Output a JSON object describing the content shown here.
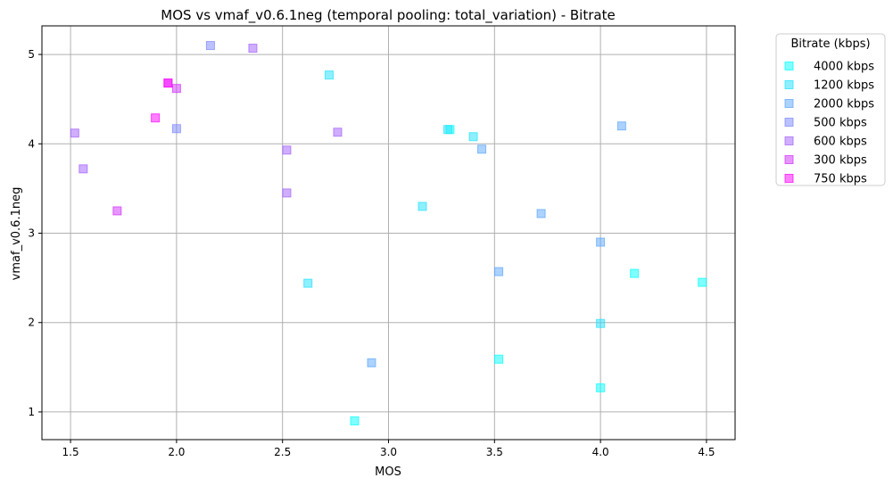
{
  "chart_data": {
    "type": "scatter",
    "title": "MOS vs vmaf_v0.6.1neg (temporal pooling: total_variation) - Bitrate",
    "xlabel": "MOS",
    "ylabel": "vmaf_v0.6.1neg",
    "xlim": [
      1.365,
      4.635
    ],
    "ylim": [
      0.69,
      5.32
    ],
    "xticks": [
      1.5,
      2.0,
      2.5,
      3.0,
      3.5,
      4.0,
      4.5
    ],
    "xtick_labels": [
      "1.5",
      "2.0",
      "2.5",
      "3.0",
      "3.5",
      "4.0",
      "4.5"
    ],
    "yticks": [
      1,
      2,
      3,
      4,
      5
    ],
    "ytick_labels": [
      "1",
      "2",
      "3",
      "4",
      "5"
    ],
    "grid": true,
    "legend_position": "outside-top-right",
    "legend_title": "Bitrate (kbps)",
    "series": [
      {
        "name": "4000 kbps",
        "color": "#00ffff",
        "points": [
          [
            3.29,
            4.16
          ],
          [
            4.16,
            2.55
          ],
          [
            4.48,
            2.45
          ],
          [
            3.52,
            1.59
          ],
          [
            4.0,
            1.27
          ],
          [
            2.84,
            0.9
          ]
        ]
      },
      {
        "name": "1200 kbps",
        "color": "#1ee1ff",
        "points": [
          [
            2.72,
            4.77
          ],
          [
            3.28,
            4.16
          ],
          [
            3.4,
            4.08
          ],
          [
            3.16,
            3.3
          ],
          [
            2.62,
            2.44
          ],
          [
            4.0,
            1.99
          ]
        ]
      },
      {
        "name": "2000 kbps",
        "color": "#5aa5ff",
        "points": [
          [
            4.1,
            4.2
          ],
          [
            3.44,
            3.94
          ],
          [
            3.72,
            3.22
          ],
          [
            4.0,
            2.9
          ],
          [
            3.52,
            2.57
          ],
          [
            2.92,
            1.55
          ]
        ]
      },
      {
        "name": "500 kbps",
        "color": "#7a85ff",
        "points": [
          [
            2.16,
            5.1
          ],
          [
            2.0,
            4.17
          ]
        ]
      },
      {
        "name": "600 kbps",
        "color": "#a15eff",
        "points": [
          [
            2.36,
            5.07
          ],
          [
            1.52,
            4.12
          ],
          [
            2.76,
            4.13
          ],
          [
            2.52,
            3.93
          ],
          [
            1.56,
            3.72
          ],
          [
            2.52,
            3.45
          ]
        ]
      },
      {
        "name": "300 kbps",
        "color": "#d22dff",
        "points": [
          [
            2.0,
            4.62
          ],
          [
            1.96,
            4.68
          ],
          [
            1.72,
            3.25
          ]
        ]
      },
      {
        "name": "750 kbps",
        "color": "#ff00ff",
        "points": [
          [
            1.96,
            4.68
          ],
          [
            1.9,
            4.29
          ]
        ]
      }
    ]
  }
}
